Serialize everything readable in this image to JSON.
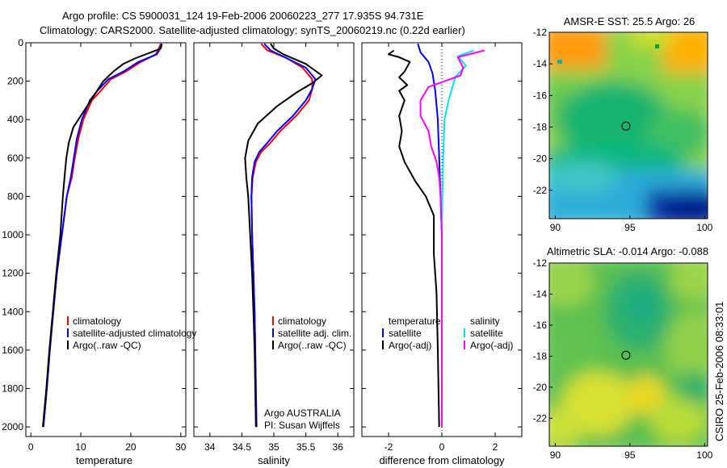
{
  "header": {
    "line1": "Argo profile: CS 5900031_124 19-Feb-2006 20060223_277 17.935S 94.731E",
    "line2": "Climatology: CARS2000. Satellite-adjusted climatology: synTS_20060219.nc (0.22d earlier)"
  },
  "side_label": "CSIRO 25-Feb-2006 08:33:01",
  "colors": {
    "climatology": "#ff0000",
    "satellite": "#0000ff",
    "argo": "#000000",
    "sat_salinity": "#00e5ee",
    "argo_adj_salinity": "#ff00ff"
  },
  "chart_data": [
    {
      "type": "line",
      "id": "temperature",
      "xlabel": "temperature",
      "xlim": [
        -1,
        31
      ],
      "ylim": [
        0,
        2050
      ],
      "xticks": [
        0,
        10,
        20,
        30
      ],
      "yticks": [
        0,
        200,
        400,
        600,
        800,
        1000,
        1200,
        1400,
        1600,
        1800,
        2000
      ],
      "legend": [
        "climatology",
        "satellite-adjusted climatology",
        "Argo(..raw -QC)"
      ],
      "series": [
        {
          "name": "climatology",
          "color": "#ff0000",
          "points": [
            [
              26,
              5
            ],
            [
              25.6,
              30
            ],
            [
              25,
              60
            ],
            [
              22,
              100
            ],
            [
              19,
              150
            ],
            [
              16,
              190
            ],
            [
              14,
              250
            ],
            [
              12.2,
              300
            ],
            [
              10.5,
              400
            ],
            [
              9.5,
              500
            ],
            [
              8.8,
              600
            ],
            [
              8.2,
              700
            ],
            [
              7.2,
              800
            ],
            [
              6.2,
              1000
            ],
            [
              5.2,
              1200
            ],
            [
              4.5,
              1400
            ],
            [
              3.8,
              1600
            ],
            [
              3.2,
              1800
            ],
            [
              2.5,
              2000
            ]
          ]
        },
        {
          "name": "satellite-adjusted climatology",
          "color": "#0000ff",
          "points": [
            [
              26.1,
              5
            ],
            [
              25.9,
              30
            ],
            [
              25.2,
              60
            ],
            [
              21.5,
              100
            ],
            [
              18.5,
              150
            ],
            [
              15.5,
              190
            ],
            [
              13.3,
              250
            ],
            [
              11.8,
              300
            ],
            [
              10.2,
              400
            ],
            [
              9.2,
              500
            ],
            [
              8.6,
              600
            ],
            [
              8,
              700
            ],
            [
              7.2,
              800
            ],
            [
              6.2,
              1000
            ],
            [
              5.2,
              1200
            ],
            [
              4.5,
              1400
            ],
            [
              3.8,
              1600
            ],
            [
              3.2,
              1800
            ],
            [
              2.5,
              2000
            ]
          ]
        },
        {
          "name": "Argo(..raw -QC)",
          "color": "#000000",
          "points": [
            [
              26.2,
              5
            ],
            [
              26,
              30
            ],
            [
              24,
              50
            ],
            [
              21,
              80
            ],
            [
              18.5,
              110
            ],
            [
              16.5,
              150
            ],
            [
              14.5,
              200
            ],
            [
              12.5,
              280
            ],
            [
              10.5,
              360
            ],
            [
              8.5,
              440
            ],
            [
              7.6,
              520
            ],
            [
              7.1,
              600
            ],
            [
              6.8,
              680
            ],
            [
              6.4,
              800
            ],
            [
              5.9,
              1000
            ],
            [
              5.1,
              1200
            ],
            [
              4.4,
              1400
            ],
            [
              3.7,
              1600
            ],
            [
              3.1,
              1800
            ],
            [
              2.4,
              2000
            ]
          ]
        }
      ]
    },
    {
      "type": "line",
      "id": "salinity",
      "xlabel": "salinity",
      "xlim": [
        33.75,
        36.25
      ],
      "ylim": [
        0,
        2050
      ],
      "xticks": [
        34,
        34.5,
        35,
        35.5,
        36
      ],
      "xticklabels": [
        "34",
        "34.5",
        "35",
        "35.5",
        "36"
      ],
      "legend": [
        "climatology",
        "satellite adj. clim.",
        "Argo(..raw -QC)"
      ],
      "annotation": [
        "Argo AUSTRALIA",
        "PI: Susan Wijffels"
      ],
      "series": [
        {
          "name": "climatology",
          "color": "#ff0000",
          "points": [
            [
              34.8,
              5
            ],
            [
              34.9,
              40
            ],
            [
              35.2,
              80
            ],
            [
              35.45,
              130
            ],
            [
              35.6,
              190
            ],
            [
              35.6,
              240
            ],
            [
              35.55,
              300
            ],
            [
              35.35,
              380
            ],
            [
              35.1,
              460
            ],
            [
              34.95,
              520
            ],
            [
              34.8,
              570
            ],
            [
              34.72,
              620
            ],
            [
              34.67,
              700
            ],
            [
              34.65,
              800
            ],
            [
              34.66,
              1000
            ],
            [
              34.68,
              1200
            ],
            [
              34.7,
              1400
            ],
            [
              34.71,
              1600
            ],
            [
              34.72,
              1800
            ],
            [
              34.73,
              2000
            ]
          ]
        },
        {
          "name": "satellite adj. clim.",
          "color": "#0000ff",
          "points": [
            [
              34.85,
              5
            ],
            [
              34.95,
              40
            ],
            [
              35.2,
              80
            ],
            [
              35.5,
              130
            ],
            [
              35.65,
              190
            ],
            [
              35.6,
              240
            ],
            [
              35.5,
              300
            ],
            [
              35.3,
              380
            ],
            [
              35.05,
              460
            ],
            [
              34.9,
              520
            ],
            [
              34.77,
              570
            ],
            [
              34.7,
              620
            ],
            [
              34.66,
              700
            ],
            [
              34.65,
              800
            ],
            [
              34.66,
              1000
            ],
            [
              34.68,
              1200
            ],
            [
              34.7,
              1400
            ],
            [
              34.71,
              1600
            ],
            [
              34.72,
              1800
            ],
            [
              34.73,
              2000
            ]
          ]
        },
        {
          "name": "Argo(..raw -QC)",
          "color": "#000000",
          "points": [
            [
              34.95,
              5
            ],
            [
              35.0,
              30
            ],
            [
              35.15,
              60
            ],
            [
              35.5,
              110
            ],
            [
              35.75,
              170
            ],
            [
              35.6,
              210
            ],
            [
              35.35,
              260
            ],
            [
              35.05,
              330
            ],
            [
              34.75,
              420
            ],
            [
              34.6,
              510
            ],
            [
              34.55,
              600
            ],
            [
              34.57,
              700
            ],
            [
              34.6,
              800
            ],
            [
              34.63,
              1000
            ],
            [
              34.66,
              1200
            ],
            [
              34.68,
              1400
            ],
            [
              34.7,
              1600
            ],
            [
              34.71,
              1800
            ],
            [
              34.72,
              2000
            ]
          ]
        }
      ]
    },
    {
      "type": "line",
      "id": "difference",
      "xlabel": "difference from climatology",
      "xlim": [
        -3,
        3
      ],
      "ylim": [
        0,
        2050
      ],
      "xticks": [
        -2,
        0,
        2
      ],
      "xticklabels": [
        "-2",
        "0",
        "2"
      ],
      "legend_left": [
        "temperature",
        "satellite",
        "Argo(-adj)"
      ],
      "legend_right": [
        "salinity",
        "satellite",
        "Argo(-adj)"
      ],
      "series": [
        {
          "name": "temperature satellite",
          "color": "#0000ff",
          "points": [
            [
              -0.9,
              5
            ],
            [
              -0.8,
              50
            ],
            [
              -0.5,
              100
            ],
            [
              -0.35,
              160
            ],
            [
              -0.25,
              250
            ],
            [
              -0.15,
              400
            ],
            [
              -0.1,
              600
            ],
            [
              -0.05,
              800
            ],
            [
              0,
              1000
            ],
            [
              0,
              2000
            ]
          ]
        },
        {
          "name": "temperature Argo(-adj)",
          "color": "#000000",
          "points": [
            [
              -1.8,
              40
            ],
            [
              -2,
              60
            ],
            [
              -1.6,
              75
            ],
            [
              -1.2,
              100
            ],
            [
              -1.4,
              150
            ],
            [
              -1.6,
              180
            ],
            [
              -1.3,
              220
            ],
            [
              -1.6,
              250
            ],
            [
              -1.4,
              300
            ],
            [
              -1.6,
              380
            ],
            [
              -1.5,
              460
            ],
            [
              -1.6,
              540
            ],
            [
              -1.4,
              620
            ],
            [
              -1.0,
              720
            ],
            [
              -0.6,
              800
            ],
            [
              -0.3,
              900
            ],
            [
              -0.3,
              1100
            ],
            [
              -0.2,
              1300
            ],
            [
              -0.15,
              1600
            ],
            [
              -0.1,
              2000
            ]
          ]
        },
        {
          "name": "salinity satellite",
          "color": "#00e5ee",
          "points": [
            [
              1.2,
              40
            ],
            [
              0.6,
              70
            ],
            [
              0.9,
              120
            ],
            [
              0.5,
              180
            ],
            [
              0.4,
              230
            ],
            [
              0.25,
              300
            ],
            [
              0.1,
              400
            ],
            [
              0.05,
              600
            ],
            [
              0.02,
              800
            ],
            [
              0,
              1000
            ],
            [
              0,
              2000
            ]
          ]
        },
        {
          "name": "salinity Argo(-adj)",
          "color": "#ff00ff",
          "points": [
            [
              1.6,
              40
            ],
            [
              0.6,
              75
            ],
            [
              0.8,
              130
            ],
            [
              0.7,
              170
            ],
            [
              -0.5,
              230
            ],
            [
              -0.8,
              300
            ],
            [
              -0.8,
              380
            ],
            [
              -0.5,
              460
            ],
            [
              -0.4,
              540
            ],
            [
              -0.2,
              620
            ],
            [
              -0.1,
              700
            ],
            [
              -0.05,
              800
            ],
            [
              0,
              1000
            ],
            [
              0,
              2000
            ]
          ]
        }
      ]
    },
    {
      "type": "heatmap",
      "id": "sst_map",
      "title": "AMSR-E SST: 25.5 Argo: 26",
      "xlim": [
        89.6,
        100.2
      ],
      "ylim": [
        -23.8,
        -12
      ],
      "xticks": [
        90,
        95,
        100
      ],
      "yticks": [
        -12,
        -14,
        -16,
        -18,
        -20,
        -22
      ],
      "marker": [
        94.731,
        -17.935
      ]
    },
    {
      "type": "heatmap",
      "id": "sla_map",
      "title": "Altimetric SLA: -0.014 Argo: -0.088",
      "xlim": [
        89.6,
        100.2
      ],
      "ylim": [
        -23.8,
        -12
      ],
      "xticks": [
        90,
        95,
        100
      ],
      "yticks": [
        -12,
        -14,
        -16,
        -18,
        -20,
        -22
      ],
      "marker": [
        94.731,
        -17.935
      ]
    }
  ]
}
